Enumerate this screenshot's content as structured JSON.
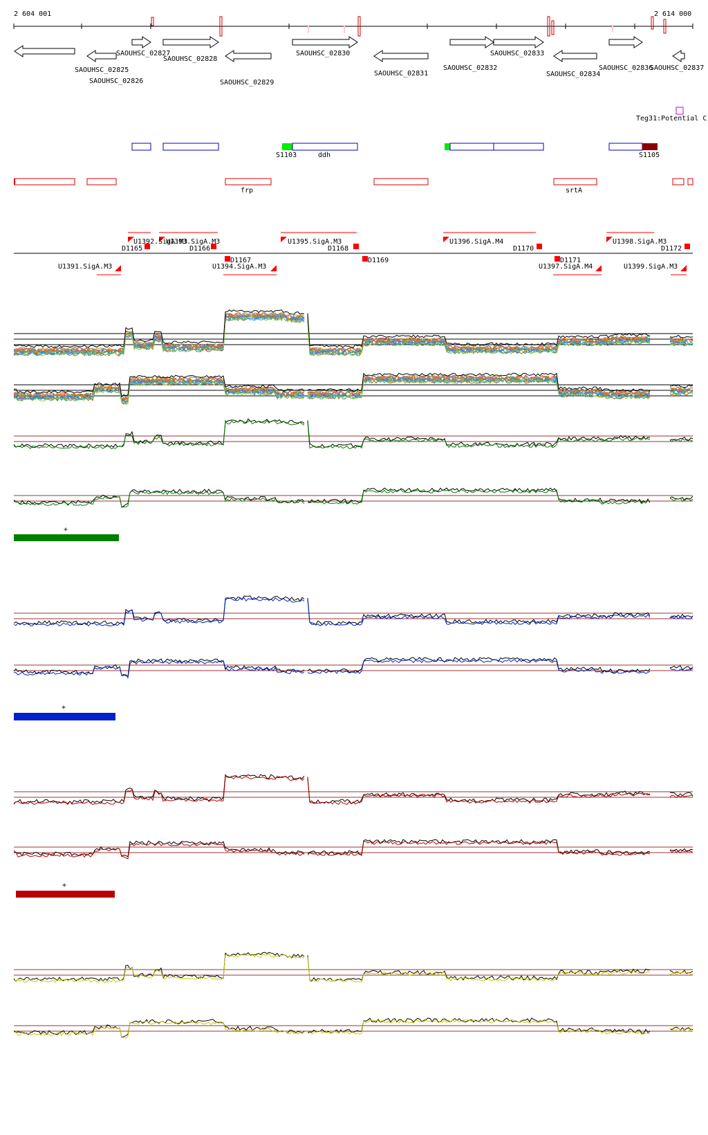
{
  "axis": {
    "start_label": "2 604 001",
    "end_label": "2 614 000"
  },
  "genes": [
    {
      "id": "SAOUHSC_02825",
      "strand": "-"
    },
    {
      "id": "SAOUHSC_02826",
      "strand": "-"
    },
    {
      "id": "SAOUHSC_02827",
      "strand": "+"
    },
    {
      "id": "SAOUHSC_02828",
      "strand": "+"
    },
    {
      "id": "SAOUHSC_02829",
      "strand": "-"
    },
    {
      "id": "SAOUHSC_02830",
      "strand": "+"
    },
    {
      "id": "SAOUHSC_02831",
      "strand": "-"
    },
    {
      "id": "SAOUHSC_02832",
      "strand": "+"
    },
    {
      "id": "SAOUHSC_02833",
      "strand": "+"
    },
    {
      "id": "SAOUHSC_02834",
      "strand": "-"
    },
    {
      "id": "SAOUHSC_02836",
      "strand": "+"
    },
    {
      "id": "SAOUHSC_02837",
      "strand": "-"
    }
  ],
  "annotations": {
    "teg_label": "Teg31:Potential C",
    "upper_labels": [
      "S1103",
      "ddh",
      "S1105"
    ],
    "lower_labels": [
      "frp",
      "srtA"
    ]
  },
  "sites": {
    "above": [
      "U1392.SigA.M3",
      "U1393.SigA.M3",
      "U1395.SigA.M3",
      "U1396.SigA.M4",
      "U1398.SigA.M3"
    ],
    "d_above": [
      "D1165",
      "D1166",
      "D1168",
      "D1170",
      "D1172"
    ],
    "below": [
      "U1391.SigA.M3",
      "U1394.SigA.M3",
      "U1397.SigA.M4",
      "U1399.SigA.M3"
    ],
    "d_below": [
      "D1167",
      "D1169",
      "D1171"
    ]
  },
  "condition_groups": [
    {
      "marker": "+",
      "color": "#008000"
    },
    {
      "marker": "+",
      "color": "#0022cc"
    },
    {
      "marker": "+",
      "color": "#bb0000"
    },
    {
      "marker": "",
      "color": "#cccc00"
    }
  ],
  "colors": {
    "gene_outline": "#000000",
    "cds": "#0000cc",
    "rna": "#dd0000",
    "site": "#ff0000",
    "threshold": "#993333",
    "teg": "#cc00cc"
  }
}
